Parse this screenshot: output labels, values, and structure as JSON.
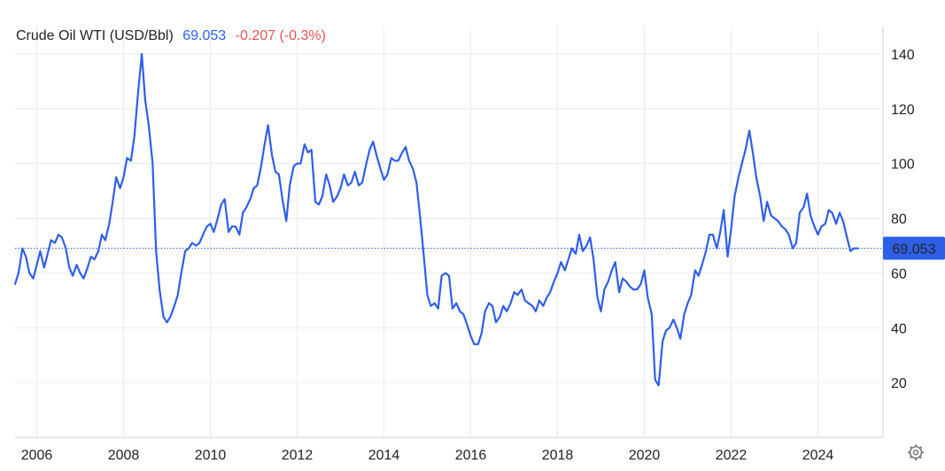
{
  "header": {
    "title": "Crude Oil WTI (USD/Bbl)",
    "price": "69.053",
    "change": "-0.207 (-0.3%)"
  },
  "price_badge": "69.053",
  "colors": {
    "line": "#2f5ee8",
    "price_text": "#2f5ee8",
    "change_text": "#e05454",
    "badge_bg": "#2f5ee8",
    "badge_text": "#ffffff",
    "grid": "#ececec",
    "axis_text": "#222222",
    "current_line": "#2f5ee8"
  },
  "icons": {
    "settings": "gear-icon"
  },
  "chart_data": {
    "type": "line",
    "title": "Crude Oil WTI (USD/Bbl)",
    "xlabel": "",
    "ylabel": "",
    "grid": true,
    "xlim": [
      2005.5,
      2025.5
    ],
    "ylim": [
      0,
      150
    ],
    "x_ticks": [
      2006,
      2008,
      2010,
      2012,
      2014,
      2016,
      2018,
      2020,
      2022,
      2024
    ],
    "y_ticks": [
      20,
      40,
      60,
      80,
      100,
      120,
      140
    ],
    "current_value": 69.053,
    "series": [
      {
        "values": [
          [
            2005.5,
            56
          ],
          [
            2005.58,
            60
          ],
          [
            2005.67,
            69
          ],
          [
            2005.75,
            66
          ],
          [
            2005.83,
            60
          ],
          [
            2005.92,
            58
          ],
          [
            2006.0,
            63
          ],
          [
            2006.08,
            68
          ],
          [
            2006.17,
            62
          ],
          [
            2006.25,
            67
          ],
          [
            2006.33,
            72
          ],
          [
            2006.42,
            71
          ],
          [
            2006.5,
            74
          ],
          [
            2006.58,
            73
          ],
          [
            2006.67,
            69
          ],
          [
            2006.75,
            62
          ],
          [
            2006.83,
            59
          ],
          [
            2006.92,
            63
          ],
          [
            2007.0,
            60
          ],
          [
            2007.08,
            58
          ],
          [
            2007.17,
            62
          ],
          [
            2007.25,
            66
          ],
          [
            2007.33,
            65
          ],
          [
            2007.42,
            68
          ],
          [
            2007.5,
            74
          ],
          [
            2007.58,
            72
          ],
          [
            2007.67,
            78
          ],
          [
            2007.75,
            86
          ],
          [
            2007.83,
            95
          ],
          [
            2007.92,
            91
          ],
          [
            2008.0,
            95
          ],
          [
            2008.08,
            102
          ],
          [
            2008.17,
            101
          ],
          [
            2008.25,
            110
          ],
          [
            2008.33,
            125
          ],
          [
            2008.42,
            140
          ],
          [
            2008.5,
            123
          ],
          [
            2008.58,
            114
          ],
          [
            2008.67,
            100
          ],
          [
            2008.75,
            68
          ],
          [
            2008.83,
            54
          ],
          [
            2008.92,
            44
          ],
          [
            2009.0,
            42
          ],
          [
            2009.08,
            44
          ],
          [
            2009.17,
            48
          ],
          [
            2009.25,
            52
          ],
          [
            2009.33,
            60
          ],
          [
            2009.42,
            68
          ],
          [
            2009.5,
            69
          ],
          [
            2009.58,
            71
          ],
          [
            2009.67,
            70
          ],
          [
            2009.75,
            71
          ],
          [
            2009.83,
            74
          ],
          [
            2009.92,
            77
          ],
          [
            2010.0,
            78
          ],
          [
            2010.08,
            75
          ],
          [
            2010.17,
            80
          ],
          [
            2010.25,
            85
          ],
          [
            2010.33,
            87
          ],
          [
            2010.42,
            75
          ],
          [
            2010.5,
            77
          ],
          [
            2010.58,
            77
          ],
          [
            2010.67,
            74
          ],
          [
            2010.75,
            82
          ],
          [
            2010.83,
            84
          ],
          [
            2010.92,
            87
          ],
          [
            2011.0,
            91
          ],
          [
            2011.08,
            92
          ],
          [
            2011.17,
            99
          ],
          [
            2011.25,
            107
          ],
          [
            2011.33,
            114
          ],
          [
            2011.42,
            103
          ],
          [
            2011.5,
            97
          ],
          [
            2011.58,
            96
          ],
          [
            2011.67,
            86
          ],
          [
            2011.75,
            79
          ],
          [
            2011.83,
            92
          ],
          [
            2011.92,
            99
          ],
          [
            2012.0,
            100
          ],
          [
            2012.08,
            100
          ],
          [
            2012.17,
            107
          ],
          [
            2012.25,
            104
          ],
          [
            2012.33,
            105
          ],
          [
            2012.42,
            86
          ],
          [
            2012.5,
            85
          ],
          [
            2012.58,
            88
          ],
          [
            2012.67,
            96
          ],
          [
            2012.75,
            92
          ],
          [
            2012.83,
            86
          ],
          [
            2012.92,
            88
          ],
          [
            2013.0,
            91
          ],
          [
            2013.08,
            96
          ],
          [
            2013.17,
            92
          ],
          [
            2013.25,
            93
          ],
          [
            2013.33,
            97
          ],
          [
            2013.42,
            92
          ],
          [
            2013.5,
            93
          ],
          [
            2013.58,
            99
          ],
          [
            2013.67,
            105
          ],
          [
            2013.75,
            108
          ],
          [
            2013.83,
            103
          ],
          [
            2013.92,
            98
          ],
          [
            2014.0,
            94
          ],
          [
            2014.08,
            96
          ],
          [
            2014.17,
            102
          ],
          [
            2014.25,
            101
          ],
          [
            2014.33,
            101
          ],
          [
            2014.42,
            104
          ],
          [
            2014.5,
            106
          ],
          [
            2014.58,
            101
          ],
          [
            2014.67,
            98
          ],
          [
            2014.75,
            93
          ],
          [
            2014.83,
            81
          ],
          [
            2014.92,
            66
          ],
          [
            2015.0,
            52
          ],
          [
            2015.08,
            48
          ],
          [
            2015.17,
            49
          ],
          [
            2015.25,
            47
          ],
          [
            2015.33,
            59
          ],
          [
            2015.42,
            60
          ],
          [
            2015.5,
            59
          ],
          [
            2015.58,
            47
          ],
          [
            2015.67,
            49
          ],
          [
            2015.75,
            46
          ],
          [
            2015.83,
            45
          ],
          [
            2015.92,
            41
          ],
          [
            2016.0,
            37
          ],
          [
            2016.08,
            34
          ],
          [
            2016.17,
            34
          ],
          [
            2016.25,
            38
          ],
          [
            2016.33,
            46
          ],
          [
            2016.42,
            49
          ],
          [
            2016.5,
            48
          ],
          [
            2016.58,
            42
          ],
          [
            2016.67,
            44
          ],
          [
            2016.75,
            48
          ],
          [
            2016.83,
            46
          ],
          [
            2016.92,
            49
          ],
          [
            2017.0,
            53
          ],
          [
            2017.08,
            52
          ],
          [
            2017.17,
            54
          ],
          [
            2017.25,
            50
          ],
          [
            2017.33,
            49
          ],
          [
            2017.42,
            48
          ],
          [
            2017.5,
            46
          ],
          [
            2017.58,
            50
          ],
          [
            2017.67,
            48
          ],
          [
            2017.75,
            51
          ],
          [
            2017.83,
            53
          ],
          [
            2017.92,
            57
          ],
          [
            2018.0,
            60
          ],
          [
            2018.08,
            64
          ],
          [
            2018.17,
            61
          ],
          [
            2018.25,
            65
          ],
          [
            2018.33,
            69
          ],
          [
            2018.42,
            67
          ],
          [
            2018.5,
            74
          ],
          [
            2018.58,
            68
          ],
          [
            2018.67,
            70
          ],
          [
            2018.75,
            73
          ],
          [
            2018.83,
            65
          ],
          [
            2018.92,
            51
          ],
          [
            2019.0,
            46
          ],
          [
            2019.08,
            54
          ],
          [
            2019.17,
            57
          ],
          [
            2019.25,
            61
          ],
          [
            2019.33,
            64
          ],
          [
            2019.42,
            53
          ],
          [
            2019.5,
            58
          ],
          [
            2019.58,
            57
          ],
          [
            2019.67,
            55
          ],
          [
            2019.75,
            54
          ],
          [
            2019.83,
            54
          ],
          [
            2019.92,
            56
          ],
          [
            2020.0,
            61
          ],
          [
            2020.08,
            51
          ],
          [
            2020.17,
            45
          ],
          [
            2020.25,
            21
          ],
          [
            2020.33,
            19
          ],
          [
            2020.42,
            35
          ],
          [
            2020.5,
            39
          ],
          [
            2020.58,
            40
          ],
          [
            2020.67,
            43
          ],
          [
            2020.75,
            40
          ],
          [
            2020.83,
            36
          ],
          [
            2020.92,
            45
          ],
          [
            2021.0,
            49
          ],
          [
            2021.08,
            52
          ],
          [
            2021.17,
            61
          ],
          [
            2021.25,
            59
          ],
          [
            2021.33,
            63
          ],
          [
            2021.42,
            68
          ],
          [
            2021.5,
            74
          ],
          [
            2021.58,
            74
          ],
          [
            2021.67,
            69
          ],
          [
            2021.75,
            75
          ],
          [
            2021.83,
            83
          ],
          [
            2021.92,
            66
          ],
          [
            2022.0,
            76
          ],
          [
            2022.08,
            88
          ],
          [
            2022.17,
            95
          ],
          [
            2022.25,
            100
          ],
          [
            2022.33,
            105
          ],
          [
            2022.42,
            112
          ],
          [
            2022.5,
            104
          ],
          [
            2022.58,
            95
          ],
          [
            2022.67,
            88
          ],
          [
            2022.75,
            79
          ],
          [
            2022.83,
            86
          ],
          [
            2022.92,
            81
          ],
          [
            2023.0,
            80
          ],
          [
            2023.08,
            79
          ],
          [
            2023.17,
            77
          ],
          [
            2023.25,
            76
          ],
          [
            2023.33,
            74
          ],
          [
            2023.42,
            69
          ],
          [
            2023.5,
            71
          ],
          [
            2023.58,
            82
          ],
          [
            2023.67,
            84
          ],
          [
            2023.75,
            89
          ],
          [
            2023.83,
            81
          ],
          [
            2023.92,
            77
          ],
          [
            2024.0,
            74
          ],
          [
            2024.08,
            77
          ],
          [
            2024.17,
            78
          ],
          [
            2024.25,
            83
          ],
          [
            2024.33,
            82
          ],
          [
            2024.42,
            78
          ],
          [
            2024.5,
            82
          ],
          [
            2024.58,
            79
          ],
          [
            2024.67,
            73
          ],
          [
            2024.75,
            68
          ],
          [
            2024.83,
            69
          ],
          [
            2024.92,
            69
          ]
        ]
      }
    ]
  }
}
